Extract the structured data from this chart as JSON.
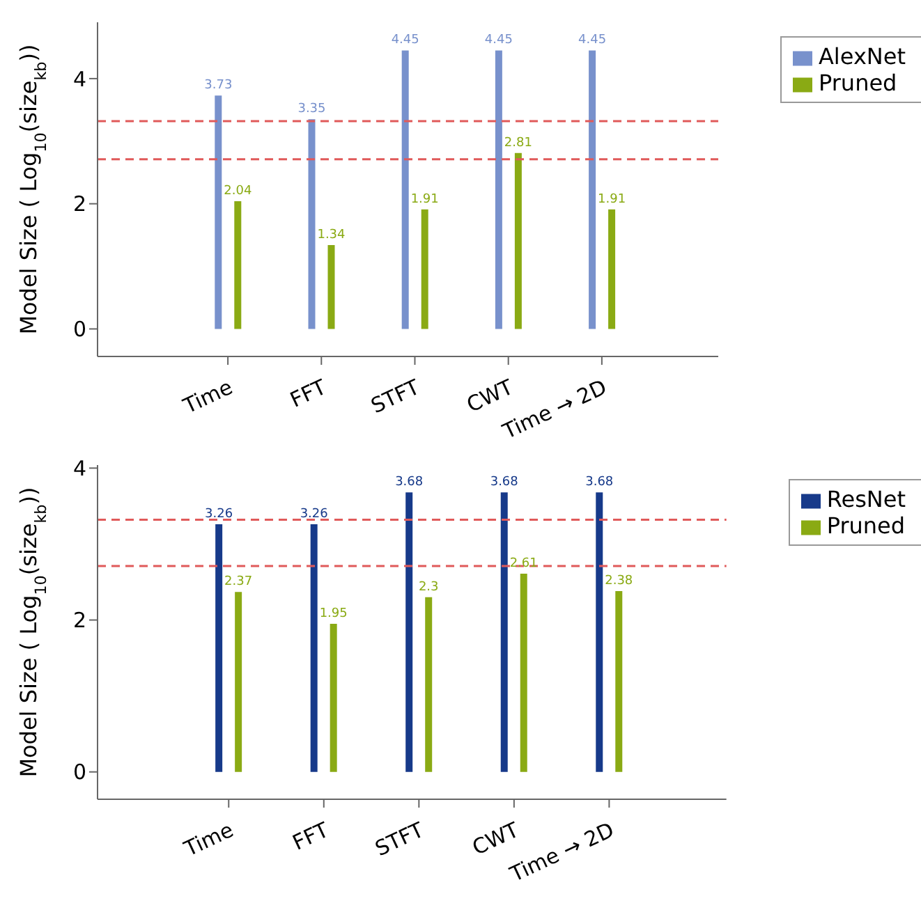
{
  "chart_data": [
    {
      "type": "bar",
      "ylabel": "Model Size ( Log$_{10}$(size$_{kb}$))",
      "categories": [
        "Time",
        "FFT",
        "STFT",
        "CWT",
        "Time → 2D"
      ],
      "series": [
        {
          "name": "AlexNet",
          "color": "#7891cc",
          "values": [
            3.73,
            3.35,
            4.45,
            4.45,
            4.45
          ]
        },
        {
          "name": "Pruned",
          "color": "#8aaa14",
          "values": [
            2.04,
            1.34,
            1.91,
            2.81,
            1.91
          ]
        }
      ],
      "ylim": [
        -0.44,
        4.9
      ],
      "yticks": [
        0,
        2,
        4
      ],
      "data_labels": true,
      "legend": "top right",
      "grid": false,
      "ref_lines": [
        {
          "axis": "y",
          "value": 3.32,
          "color": "#e05a5a",
          "line_style": "dashed"
        },
        {
          "axis": "y",
          "value": 2.71,
          "color": "#e05a5a",
          "line_style": "dashed"
        }
      ]
    },
    {
      "type": "bar",
      "ylabel": "Model Size ( Log$_{10}$(size$_{kb}$))",
      "categories": [
        "Time",
        "FFT",
        "STFT",
        "CWT",
        "Time → 2D"
      ],
      "series": [
        {
          "name": "ResNet",
          "color": "#173a8a",
          "values": [
            3.26,
            3.26,
            3.68,
            3.68,
            3.68
          ]
        },
        {
          "name": "Pruned",
          "color": "#8aaa14",
          "values": [
            2.37,
            1.95,
            2.3,
            2.61,
            2.38
          ]
        }
      ],
      "ylim": [
        -0.36,
        4.04
      ],
      "yticks": [
        0,
        2,
        4
      ],
      "data_labels": true,
      "legend": "top right",
      "grid": false,
      "ref_lines": [
        {
          "axis": "y",
          "value": 3.32,
          "color": "#e05a5a",
          "line_style": "dashed"
        },
        {
          "axis": "y",
          "value": 2.71,
          "color": "#e05a5a",
          "line_style": "dashed"
        }
      ]
    }
  ]
}
